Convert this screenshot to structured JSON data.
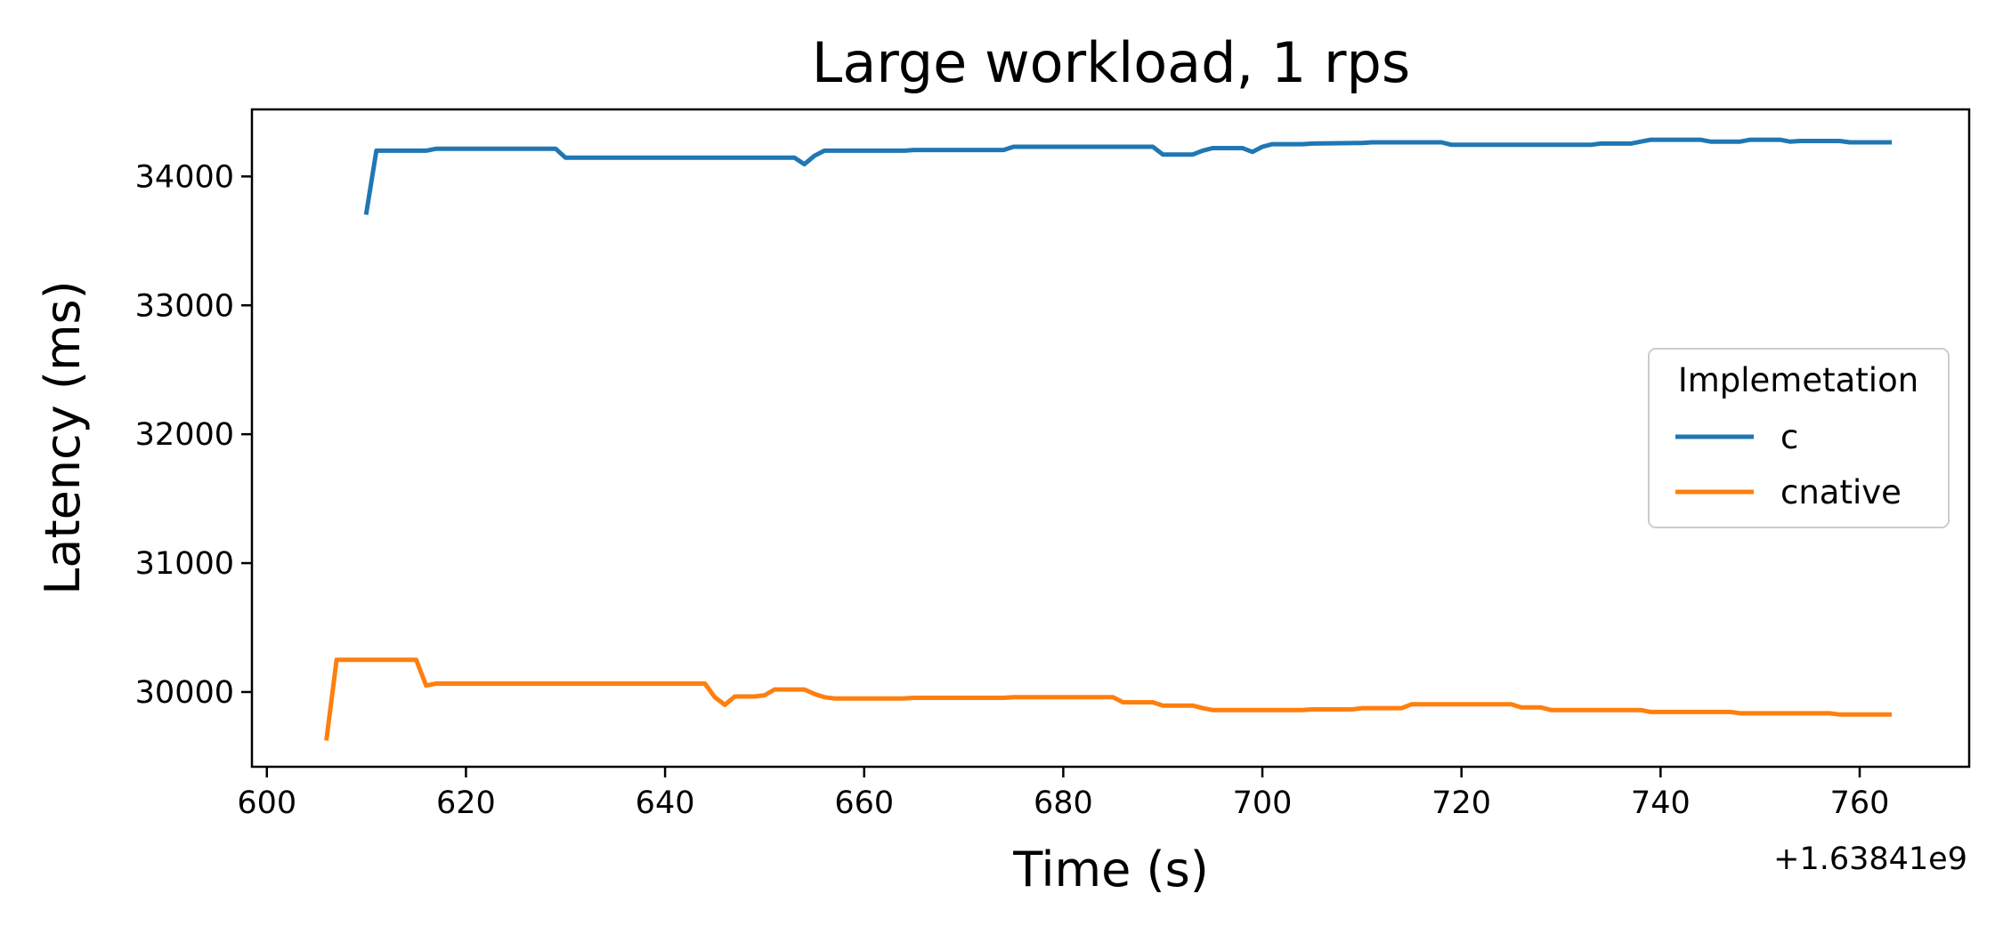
{
  "chart_data": {
    "type": "line",
    "title": "Large workload, 1 rps",
    "xlabel": "Time (s)",
    "ylabel": "Latency (ms)",
    "x_offset_label": "+1.63841e9",
    "xlim": [
      598.5,
      771
    ],
    "ylim": [
      29420,
      34520
    ],
    "xticks": [
      600,
      620,
      640,
      660,
      680,
      700,
      720,
      740,
      760
    ],
    "yticks": [
      30000,
      31000,
      32000,
      33000,
      34000
    ],
    "grid": false,
    "legend": {
      "title": "Implemetation",
      "placement": "center-right"
    },
    "series": [
      {
        "name": "c",
        "color": "#1f77b4",
        "points": [
          [
            610,
            33720
          ],
          [
            611,
            34200
          ],
          [
            616,
            34200
          ],
          [
            617,
            34215
          ],
          [
            629,
            34215
          ],
          [
            630,
            34145
          ],
          [
            653,
            34145
          ],
          [
            654,
            34095
          ],
          [
            655,
            34160
          ],
          [
            656,
            34200
          ],
          [
            664,
            34200
          ],
          [
            665,
            34205
          ],
          [
            674,
            34205
          ],
          [
            675,
            34230
          ],
          [
            689,
            34230
          ],
          [
            690,
            34170
          ],
          [
            693,
            34170
          ],
          [
            694,
            34200
          ],
          [
            695,
            34220
          ],
          [
            698,
            34220
          ],
          [
            699,
            34190
          ],
          [
            700,
            34230
          ],
          [
            701,
            34250
          ],
          [
            704,
            34250
          ],
          [
            705,
            34255
          ],
          [
            710,
            34260
          ],
          [
            711,
            34265
          ],
          [
            718,
            34265
          ],
          [
            719,
            34245
          ],
          [
            733,
            34245
          ],
          [
            734,
            34255
          ],
          [
            737,
            34255
          ],
          [
            739,
            34285
          ],
          [
            744,
            34285
          ],
          [
            745,
            34270
          ],
          [
            748,
            34270
          ],
          [
            749,
            34285
          ],
          [
            752,
            34285
          ],
          [
            753,
            34270
          ],
          [
            754,
            34275
          ],
          [
            758,
            34275
          ],
          [
            759,
            34265
          ],
          [
            763,
            34265
          ]
        ]
      },
      {
        "name": "cnative",
        "color": "#ff7f0e",
        "points": [
          [
            606,
            29640
          ],
          [
            607,
            30250
          ],
          [
            615,
            30250
          ],
          [
            616,
            30050
          ],
          [
            617,
            30065
          ],
          [
            644,
            30065
          ],
          [
            645,
            29960
          ],
          [
            646,
            29900
          ],
          [
            647,
            29965
          ],
          [
            649,
            29965
          ],
          [
            650,
            29975
          ],
          [
            651,
            30020
          ],
          [
            654,
            30020
          ],
          [
            655,
            29985
          ],
          [
            656,
            29960
          ],
          [
            657,
            29950
          ],
          [
            664,
            29950
          ],
          [
            665,
            29955
          ],
          [
            674,
            29955
          ],
          [
            675,
            29960
          ],
          [
            685,
            29960
          ],
          [
            686,
            29920
          ],
          [
            689,
            29920
          ],
          [
            690,
            29895
          ],
          [
            693,
            29895
          ],
          [
            694,
            29875
          ],
          [
            695,
            29860
          ],
          [
            704,
            29860
          ],
          [
            705,
            29865
          ],
          [
            709,
            29865
          ],
          [
            710,
            29875
          ],
          [
            714,
            29875
          ],
          [
            715,
            29905
          ],
          [
            725,
            29905
          ],
          [
            726,
            29880
          ],
          [
            728,
            29880
          ],
          [
            729,
            29860
          ],
          [
            738,
            29860
          ],
          [
            739,
            29845
          ],
          [
            747,
            29845
          ],
          [
            748,
            29835
          ],
          [
            757,
            29835
          ],
          [
            758,
            29825
          ],
          [
            763,
            29825
          ]
        ]
      }
    ]
  }
}
